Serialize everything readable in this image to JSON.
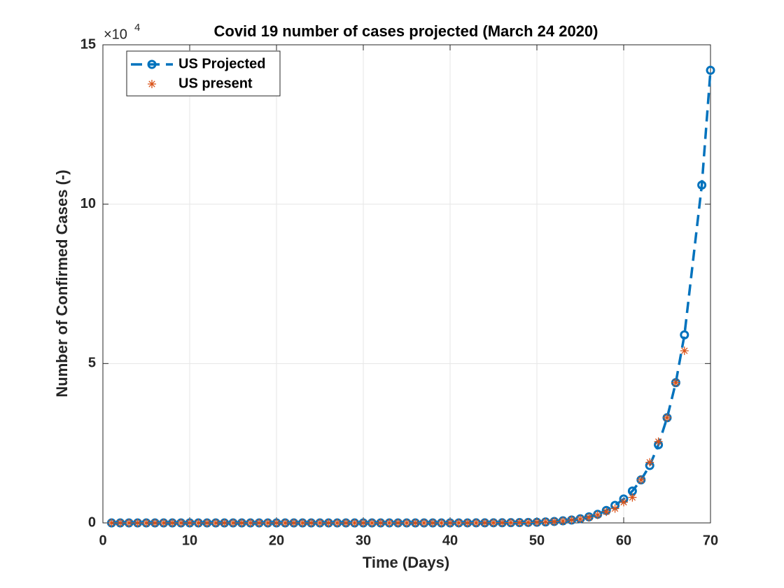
{
  "chart_data": {
    "type": "line",
    "title": "Covid 19 number of cases projected (March 24 2020)",
    "x_label": "Time (Days)",
    "y_label": "Number of Confirmed Cases (-)",
    "y_exponent": {
      "base": "×10",
      "power": 4
    },
    "xlim": [
      0,
      70
    ],
    "xticks": [
      0,
      10,
      20,
      30,
      40,
      50,
      60,
      70
    ],
    "ylim": [
      0,
      15
    ],
    "yticks": [
      0,
      5,
      10,
      15
    ],
    "grid": true,
    "legend_position": "northwest",
    "series": [
      {
        "name": "US Projected",
        "color": "#0072BD",
        "line_style": "dashed",
        "marker": "circle",
        "x": [
          1,
          2,
          3,
          4,
          5,
          6,
          7,
          8,
          9,
          10,
          11,
          12,
          13,
          14,
          15,
          16,
          17,
          18,
          19,
          20,
          21,
          22,
          23,
          24,
          25,
          26,
          27,
          28,
          29,
          30,
          31,
          32,
          33,
          34,
          35,
          36,
          37,
          38,
          39,
          40,
          41,
          42,
          43,
          44,
          45,
          46,
          47,
          48,
          49,
          50,
          51,
          52,
          53,
          54,
          55,
          56,
          57,
          58,
          59,
          60,
          61,
          62,
          63,
          64,
          65,
          66,
          67,
          69,
          70
        ],
        "values": [
          0,
          0,
          0,
          0,
          0,
          0,
          0,
          0,
          0,
          0,
          0,
          0,
          0,
          0,
          0,
          0,
          0,
          0,
          0,
          0,
          0,
          0,
          0,
          0,
          0,
          0,
          0,
          0,
          0,
          0,
          0,
          0,
          0,
          0,
          0,
          0,
          0,
          0,
          0,
          0,
          0.001,
          0.001,
          0.002,
          0.003,
          0.004,
          0.006,
          0.008,
          0.011,
          0.015,
          0.02,
          0.03,
          0.045,
          0.065,
          0.09,
          0.13,
          0.19,
          0.27,
          0.39,
          0.55,
          0.75,
          1.0,
          1.35,
          1.8,
          2.45,
          3.3,
          4.4,
          5.9,
          10.6,
          14.2
        ]
      },
      {
        "name": "US present",
        "color": "#D95319",
        "line_style": "none",
        "marker": "asterisk",
        "x": [
          1,
          2,
          3,
          4,
          5,
          6,
          7,
          8,
          9,
          10,
          11,
          12,
          13,
          14,
          15,
          16,
          17,
          18,
          19,
          20,
          21,
          22,
          23,
          24,
          25,
          26,
          27,
          28,
          29,
          30,
          31,
          32,
          33,
          34,
          35,
          36,
          37,
          38,
          39,
          40,
          41,
          42,
          43,
          44,
          45,
          46,
          47,
          48,
          49,
          50,
          51,
          52,
          53,
          54,
          55,
          56,
          57,
          58,
          59,
          60,
          61,
          62,
          63,
          64,
          65,
          66,
          67
        ],
        "values": [
          0,
          0,
          0,
          0,
          0,
          0,
          0,
          0,
          0,
          0,
          0,
          0,
          0,
          0,
          0,
          0,
          0,
          0,
          0,
          0,
          0,
          0,
          0,
          0,
          0,
          0,
          0,
          0,
          0,
          0,
          0,
          0,
          0,
          0,
          0,
          0,
          0,
          0,
          0,
          0,
          0.001,
          0.001,
          0.002,
          0.003,
          0.004,
          0.006,
          0.008,
          0.01,
          0.014,
          0.02,
          0.03,
          0.04,
          0.06,
          0.09,
          0.12,
          0.17,
          0.25,
          0.35,
          0.45,
          0.65,
          0.8,
          1.35,
          1.9,
          2.55,
          3.3,
          4.4,
          5.4
        ]
      }
    ]
  }
}
